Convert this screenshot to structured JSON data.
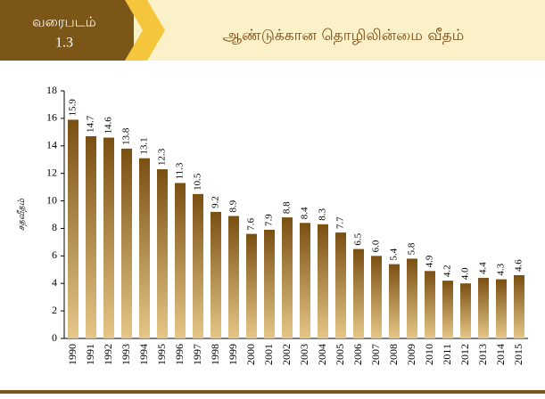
{
  "header": {
    "label": "வரைபடம்",
    "number": "1.3"
  },
  "chart_data": {
    "type": "bar",
    "title": "ஆண்டுக்கான தொழிலின்மை வீதம்",
    "y_label": "சதவீதம்",
    "categories": [
      "1990",
      "1991",
      "1992",
      "1993",
      "1994",
      "1995",
      "1996",
      "1997",
      "1998",
      "1999",
      "2000",
      "2001",
      "2002",
      "2003",
      "2004",
      "2005",
      "2006",
      "2007",
      "2008",
      "2009",
      "2010",
      "2011",
      "2012",
      "2013",
      "2014",
      "2015"
    ],
    "values": [
      15.9,
      14.7,
      14.6,
      13.8,
      13.1,
      12.3,
      11.3,
      10.5,
      9.2,
      8.9,
      7.6,
      7.9,
      8.8,
      8.4,
      8.3,
      7.7,
      6.5,
      6.0,
      5.4,
      5.8,
      4.9,
      4.2,
      4.0,
      4.4,
      4.3,
      4.6
    ],
    "value_labels": [
      "15.9",
      "14.7",
      "14.6",
      "13.8",
      "13.1",
      "12.3",
      "11.3",
      "10.5",
      "9.2",
      "8.9",
      "7.6",
      "7.9",
      "8.8",
      "8.4",
      "8.3",
      "7.7",
      "6.5",
      "6.0",
      "5.4",
      "5.8",
      "4.9",
      "4.2",
      "4.0",
      "4.4",
      "4.3",
      "4.6"
    ],
    "color": "#7a4f12",
    "ylim": [
      0,
      18
    ],
    "yticks": [
      0,
      2,
      4,
      6,
      8,
      10,
      12,
      14,
      16,
      18
    ],
    "grid": false
  }
}
